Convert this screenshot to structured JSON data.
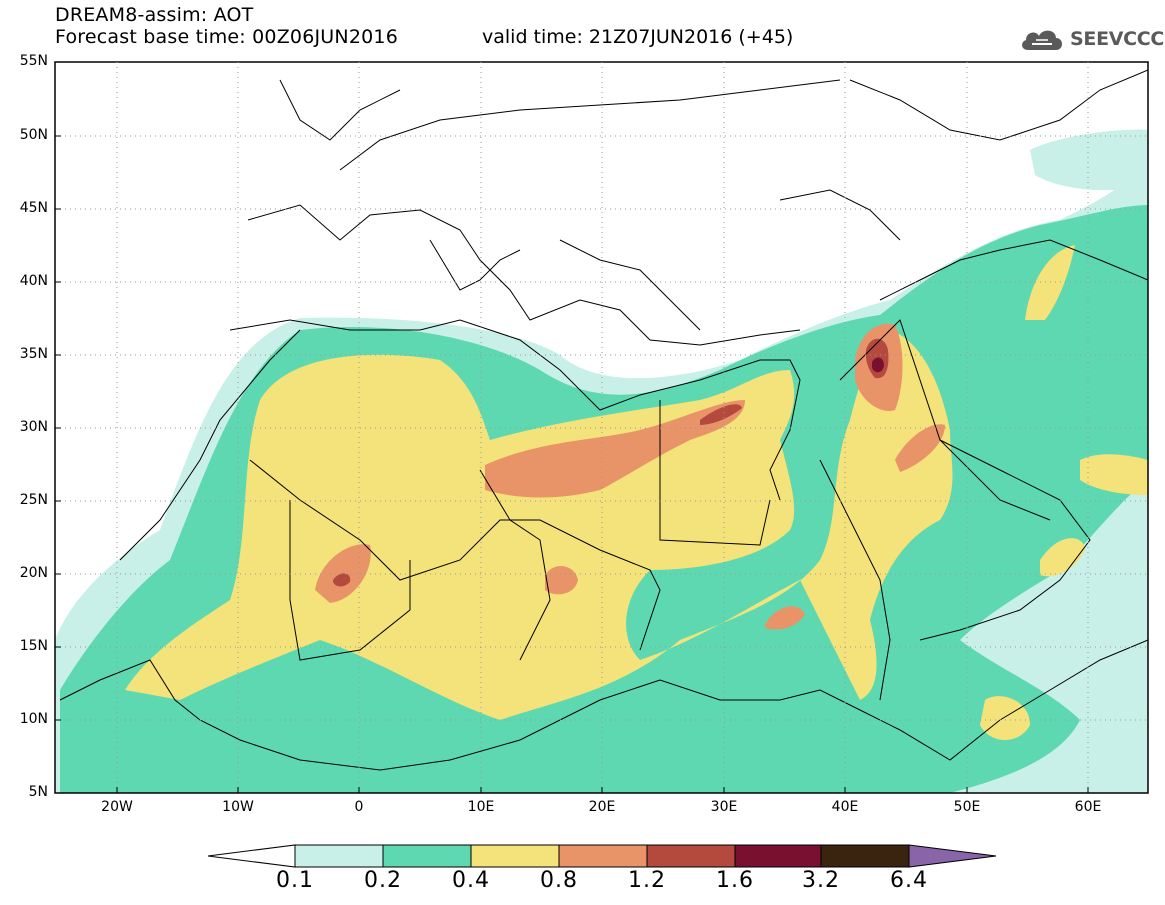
{
  "header": {
    "title": "DREAM8-assim: AOT",
    "base_time": "Forecast base time: 00Z06JUN2016",
    "valid_time": "valid time: 21Z07JUN2016 (+45)",
    "logo_text": "SEEVCCC"
  },
  "map": {
    "lat_labels": [
      "55N",
      "50N",
      "45N",
      "40N",
      "35N",
      "30N",
      "25N",
      "20N",
      "15N",
      "10N",
      "5N"
    ],
    "lon_labels": [
      "20W",
      "10W",
      "0",
      "10E",
      "20E",
      "30E",
      "40E",
      "50E",
      "60E"
    ],
    "colors": {
      "ocean_land": "#ffffff",
      "border": "#000000",
      "aot_0_1": "#c8f0e8",
      "aot_0_2": "#5ed8b0",
      "aot_0_4": "#f4e27a",
      "aot_0_8": "#e89468",
      "aot_1_2": "#b44a3e",
      "aot_1_6": "#7a1030",
      "aot_3_2": "#3a2410",
      "aot_6_4": "#8a64a8"
    }
  },
  "colorbar": {
    "labels": [
      "0.1",
      "0.2",
      "0.4",
      "0.8",
      "1.2",
      "1.6",
      "3.2",
      "6.4"
    ],
    "colors": [
      "#ffffff",
      "#c8f0e8",
      "#5ed8b0",
      "#f4e27a",
      "#e89468",
      "#b44a3e",
      "#7a1030",
      "#3a2410",
      "#8a64a8"
    ]
  }
}
